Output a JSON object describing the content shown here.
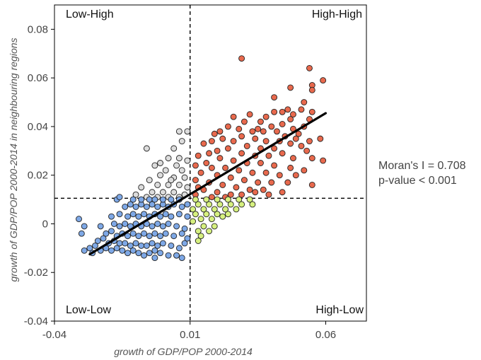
{
  "chart_data": {
    "type": "scatter",
    "xlabel": "growth of GDP/POP 2000-2014",
    "ylabel": "growth of GDP/POP 2000-2014 in neighbouring regions",
    "xlim": [
      -0.04,
      0.075
    ],
    "ylim": [
      -0.04,
      0.09
    ],
    "xticks": [
      -0.04,
      0.01,
      0.06
    ],
    "xtick_labels": [
      "-0.04",
      "0.01",
      "0.06"
    ],
    "yticks": [
      -0.04,
      -0.02,
      0,
      0.02,
      0.04,
      0.06,
      0.08
    ],
    "ytick_labels": [
      "-0.04",
      "-0.02",
      "0",
      "0.02",
      "0.04",
      "0.06",
      "0.08"
    ],
    "grid": false,
    "reference_lines": {
      "x_mean": 0.01,
      "y_mean": 0.0105
    },
    "quadrant_labels": {
      "top_left": "Low-High",
      "top_right": "High-High",
      "bottom_left": "Low-Low",
      "bottom_right": "High-Low"
    },
    "regression_line": {
      "x": [
        -0.027,
        0.06
      ],
      "y": [
        -0.0125,
        0.0455
      ]
    },
    "annotation": {
      "morans_i": "Moran's I = 0.708",
      "p_value": "p-value < 0.001"
    },
    "series": [
      {
        "name": "High-High",
        "color": "#e8694d",
        "points": [
          [
            0.029,
            0.068
          ],
          [
            0.054,
            0.064
          ],
          [
            0.055,
            0.057
          ],
          [
            0.059,
            0.059
          ],
          [
            0.047,
            0.056
          ],
          [
            0.055,
            0.055
          ],
          [
            0.041,
            0.052
          ],
          [
            0.052,
            0.05
          ],
          [
            0.046,
            0.047
          ],
          [
            0.051,
            0.047
          ],
          [
            0.048,
            0.045
          ],
          [
            0.055,
            0.046
          ],
          [
            0.047,
            0.043
          ],
          [
            0.054,
            0.043
          ],
          [
            0.032,
            0.045
          ],
          [
            0.038,
            0.044
          ],
          [
            0.041,
            0.046
          ],
          [
            0.044,
            0.046
          ],
          [
            0.036,
            0.042
          ],
          [
            0.03,
            0.042
          ],
          [
            0.04,
            0.04
          ],
          [
            0.048,
            0.039
          ],
          [
            0.052,
            0.04
          ],
          [
            0.042,
            0.038
          ],
          [
            0.045,
            0.036
          ],
          [
            0.05,
            0.037
          ],
          [
            0.037,
            0.038
          ],
          [
            0.033,
            0.038
          ],
          [
            0.028,
            0.039
          ],
          [
            0.024,
            0.04
          ],
          [
            0.021,
            0.038
          ],
          [
            0.034,
            0.035
          ],
          [
            0.029,
            0.036
          ],
          [
            0.038,
            0.034
          ],
          [
            0.043,
            0.034
          ],
          [
            0.047,
            0.033
          ],
          [
            0.051,
            0.032
          ],
          [
            0.054,
            0.034
          ],
          [
            0.058,
            0.035
          ],
          [
            0.041,
            0.031
          ],
          [
            0.036,
            0.031
          ],
          [
            0.031,
            0.032
          ],
          [
            0.026,
            0.034
          ],
          [
            0.022,
            0.035
          ],
          [
            0.018,
            0.034
          ],
          [
            0.015,
            0.033
          ],
          [
            0.024,
            0.031
          ],
          [
            0.029,
            0.029
          ],
          [
            0.034,
            0.028
          ],
          [
            0.039,
            0.028
          ],
          [
            0.044,
            0.029
          ],
          [
            0.048,
            0.027
          ],
          [
            0.055,
            0.027
          ],
          [
            0.059,
            0.026
          ],
          [
            0.053,
            0.03
          ],
          [
            0.02,
            0.03
          ],
          [
            0.017,
            0.029
          ],
          [
            0.013,
            0.028
          ],
          [
            0.021,
            0.027
          ],
          [
            0.026,
            0.026
          ],
          [
            0.031,
            0.025
          ],
          [
            0.036,
            0.025
          ],
          [
            0.041,
            0.024
          ],
          [
            0.047,
            0.023
          ],
          [
            0.052,
            0.022
          ],
          [
            0.016,
            0.025
          ],
          [
            0.012,
            0.024
          ],
          [
            0.018,
            0.023
          ],
          [
            0.023,
            0.023
          ],
          [
            0.028,
            0.022
          ],
          [
            0.033,
            0.021
          ],
          [
            0.038,
            0.021
          ],
          [
            0.043,
            0.02
          ],
          [
            0.049,
            0.02
          ],
          [
            0.014,
            0.021
          ],
          [
            0.02,
            0.02
          ],
          [
            0.025,
            0.019
          ],
          [
            0.03,
            0.018
          ],
          [
            0.035,
            0.017
          ],
          [
            0.04,
            0.017
          ],
          [
            0.046,
            0.017
          ],
          [
            0.012,
            0.018
          ],
          [
            0.017,
            0.017
          ],
          [
            0.022,
            0.016
          ],
          [
            0.027,
            0.015
          ],
          [
            0.032,
            0.014
          ],
          [
            0.037,
            0.014
          ],
          [
            0.055,
            0.016
          ],
          [
            0.015,
            0.014
          ],
          [
            0.02,
            0.013
          ],
          [
            0.025,
            0.012
          ],
          [
            0.029,
            0.012
          ],
          [
            0.034,
            0.013
          ],
          [
            0.012,
            0.012
          ],
          [
            0.018,
            0.011
          ],
          [
            0.023,
            0.011
          ],
          [
            0.039,
            0.012
          ],
          [
            0.044,
            0.013
          ],
          [
            0.013,
            0.015
          ],
          [
            0.035,
            0.039
          ],
          [
            0.026,
            0.044
          ],
          [
            0.044,
            0.041
          ],
          [
            0.049,
            0.035
          ],
          [
            0.019,
            0.037
          ]
        ]
      },
      {
        "name": "Low-High",
        "color": "#dcdcdc",
        "points": [
          [
            -0.006,
            0.031
          ],
          [
            0.006,
            0.038
          ],
          [
            0.009,
            0.038
          ],
          [
            0.007,
            0.034
          ],
          [
            0.004,
            0.031
          ],
          [
            0.006,
            0.027
          ],
          [
            0.002,
            0.027
          ],
          [
            0.005,
            0.024
          ],
          [
            -0.003,
            0.024
          ],
          [
            0.001,
            0.022
          ],
          [
            0.007,
            0.022
          ],
          [
            -0.001,
            0.02
          ],
          [
            0.004,
            0.019
          ],
          [
            0.008,
            0.019
          ],
          [
            -0.005,
            0.018
          ],
          [
            -0.002,
            0.016
          ],
          [
            0.002,
            0.016
          ],
          [
            0.006,
            0.016
          ],
          [
            0.009,
            0.015
          ],
          [
            -0.008,
            0.015
          ],
          [
            -0.004,
            0.013
          ],
          [
            0.0,
            0.013
          ],
          [
            0.004,
            0.013
          ],
          [
            0.008,
            0.012
          ],
          [
            -0.01,
            0.012
          ],
          [
            -0.006,
            0.011
          ],
          [
            -0.002,
            0.011
          ],
          [
            0.002,
            0.011
          ],
          [
            0.006,
            0.011
          ],
          [
            -0.001,
            0.025
          ],
          [
            0.009,
            0.026
          ],
          [
            0.003,
            0.018
          ]
        ]
      },
      {
        "name": "High-Low",
        "color": "#d6f07f",
        "points": [
          [
            0.012,
            0.01
          ],
          [
            0.016,
            0.01
          ],
          [
            0.02,
            0.01
          ],
          [
            0.024,
            0.01
          ],
          [
            0.028,
            0.01
          ],
          [
            0.032,
            0.01
          ],
          [
            0.013,
            0.008
          ],
          [
            0.017,
            0.008
          ],
          [
            0.021,
            0.008
          ],
          [
            0.025,
            0.008
          ],
          [
            0.029,
            0.008
          ],
          [
            0.033,
            0.008
          ],
          [
            0.011,
            0.006
          ],
          [
            0.015,
            0.006
          ],
          [
            0.019,
            0.006
          ],
          [
            0.023,
            0.006
          ],
          [
            0.027,
            0.006
          ],
          [
            0.012,
            0.004
          ],
          [
            0.016,
            0.004
          ],
          [
            0.02,
            0.004
          ],
          [
            0.024,
            0.004
          ],
          [
            0.014,
            0.002
          ],
          [
            0.018,
            0.002
          ],
          [
            0.022,
            0.003
          ],
          [
            0.011,
            0.001
          ],
          [
            0.015,
            -0.001
          ],
          [
            0.019,
            -0.001
          ],
          [
            0.013,
            -0.003
          ],
          [
            0.017,
            -0.003
          ],
          [
            0.014,
            -0.005
          ],
          [
            0.013,
            -0.007
          ]
        ]
      },
      {
        "name": "Low-Low",
        "color": "#7ea8e6",
        "points": [
          [
            -0.029,
            -0.011
          ],
          [
            -0.027,
            -0.01
          ],
          [
            -0.025,
            -0.009
          ],
          [
            -0.026,
            -0.012
          ],
          [
            -0.023,
            -0.011
          ],
          [
            -0.021,
            -0.01
          ],
          [
            -0.019,
            -0.011
          ],
          [
            -0.017,
            -0.01
          ],
          [
            -0.015,
            -0.011
          ],
          [
            -0.013,
            -0.012
          ],
          [
            -0.011,
            -0.011
          ],
          [
            -0.009,
            -0.012
          ],
          [
            -0.007,
            -0.013
          ],
          [
            -0.005,
            -0.012
          ],
          [
            -0.003,
            -0.011
          ],
          [
            -0.001,
            -0.012
          ],
          [
            0.002,
            -0.013
          ],
          [
            0.005,
            -0.013
          ],
          [
            0.007,
            -0.014
          ],
          [
            -0.024,
            -0.007
          ],
          [
            -0.022,
            -0.006
          ],
          [
            -0.02,
            -0.008
          ],
          [
            -0.018,
            -0.007
          ],
          [
            -0.016,
            -0.008
          ],
          [
            -0.014,
            -0.008
          ],
          [
            -0.012,
            -0.009
          ],
          [
            -0.01,
            -0.008
          ],
          [
            -0.008,
            -0.009
          ],
          [
            -0.006,
            -0.009
          ],
          [
            -0.004,
            -0.008
          ],
          [
            -0.002,
            -0.009
          ],
          [
            0.0,
            -0.008
          ],
          [
            0.003,
            -0.009
          ],
          [
            0.006,
            -0.01
          ],
          [
            0.008,
            -0.008
          ],
          [
            -0.021,
            -0.004
          ],
          [
            -0.019,
            -0.003
          ],
          [
            -0.017,
            -0.005
          ],
          [
            -0.015,
            -0.004
          ],
          [
            -0.013,
            -0.005
          ],
          [
            -0.011,
            -0.004
          ],
          [
            -0.009,
            -0.005
          ],
          [
            -0.007,
            -0.004
          ],
          [
            -0.005,
            -0.005
          ],
          [
            -0.003,
            -0.004
          ],
          [
            -0.001,
            -0.005
          ],
          [
            0.001,
            -0.004
          ],
          [
            0.004,
            -0.005
          ],
          [
            0.007,
            -0.004
          ],
          [
            0.009,
            -0.006
          ],
          [
            -0.023,
            -0.001
          ],
          [
            -0.018,
            0.0
          ],
          [
            -0.016,
            -0.001
          ],
          [
            -0.014,
            0.0
          ],
          [
            -0.012,
            -0.001
          ],
          [
            -0.01,
            0.0
          ],
          [
            -0.008,
            -0.001
          ],
          [
            -0.006,
            0.0
          ],
          [
            -0.004,
            -0.001
          ],
          [
            -0.002,
            0.0
          ],
          [
            0.0,
            -0.001
          ],
          [
            0.002,
            0.0
          ],
          [
            0.005,
            -0.001
          ],
          [
            0.008,
            -0.002
          ],
          [
            -0.019,
            0.003
          ],
          [
            -0.016,
            0.004
          ],
          [
            -0.013,
            0.003
          ],
          [
            -0.011,
            0.004
          ],
          [
            -0.009,
            0.003
          ],
          [
            -0.007,
            0.004
          ],
          [
            -0.005,
            0.003
          ],
          [
            -0.003,
            0.004
          ],
          [
            -0.001,
            0.003
          ],
          [
            0.001,
            0.004
          ],
          [
            0.003,
            0.003
          ],
          [
            0.006,
            0.004
          ],
          [
            0.009,
            0.003
          ],
          [
            -0.014,
            0.007
          ],
          [
            -0.012,
            0.008
          ],
          [
            -0.01,
            0.007
          ],
          [
            -0.008,
            0.008
          ],
          [
            -0.006,
            0.007
          ],
          [
            -0.004,
            0.008
          ],
          [
            -0.002,
            0.007
          ],
          [
            0.0,
            0.008
          ],
          [
            0.002,
            0.007
          ],
          [
            0.004,
            0.008
          ],
          [
            0.007,
            0.007
          ],
          [
            0.009,
            0.008
          ],
          [
            -0.011,
            0.01
          ],
          [
            -0.008,
            0.01
          ],
          [
            -0.005,
            0.01
          ],
          [
            -0.003,
            0.01
          ],
          [
            0.0,
            0.01
          ],
          [
            0.003,
            0.01
          ],
          [
            0.006,
            0.01
          ],
          [
            -0.031,
            0.002
          ],
          [
            -0.029,
            -0.001
          ],
          [
            -0.03,
            -0.004
          ],
          [
            -0.017,
            0.01
          ],
          [
            -0.016,
            0.011
          ],
          [
            -0.003,
            -0.014
          ],
          [
            0.005,
            -0.013
          ]
        ]
      }
    ]
  }
}
